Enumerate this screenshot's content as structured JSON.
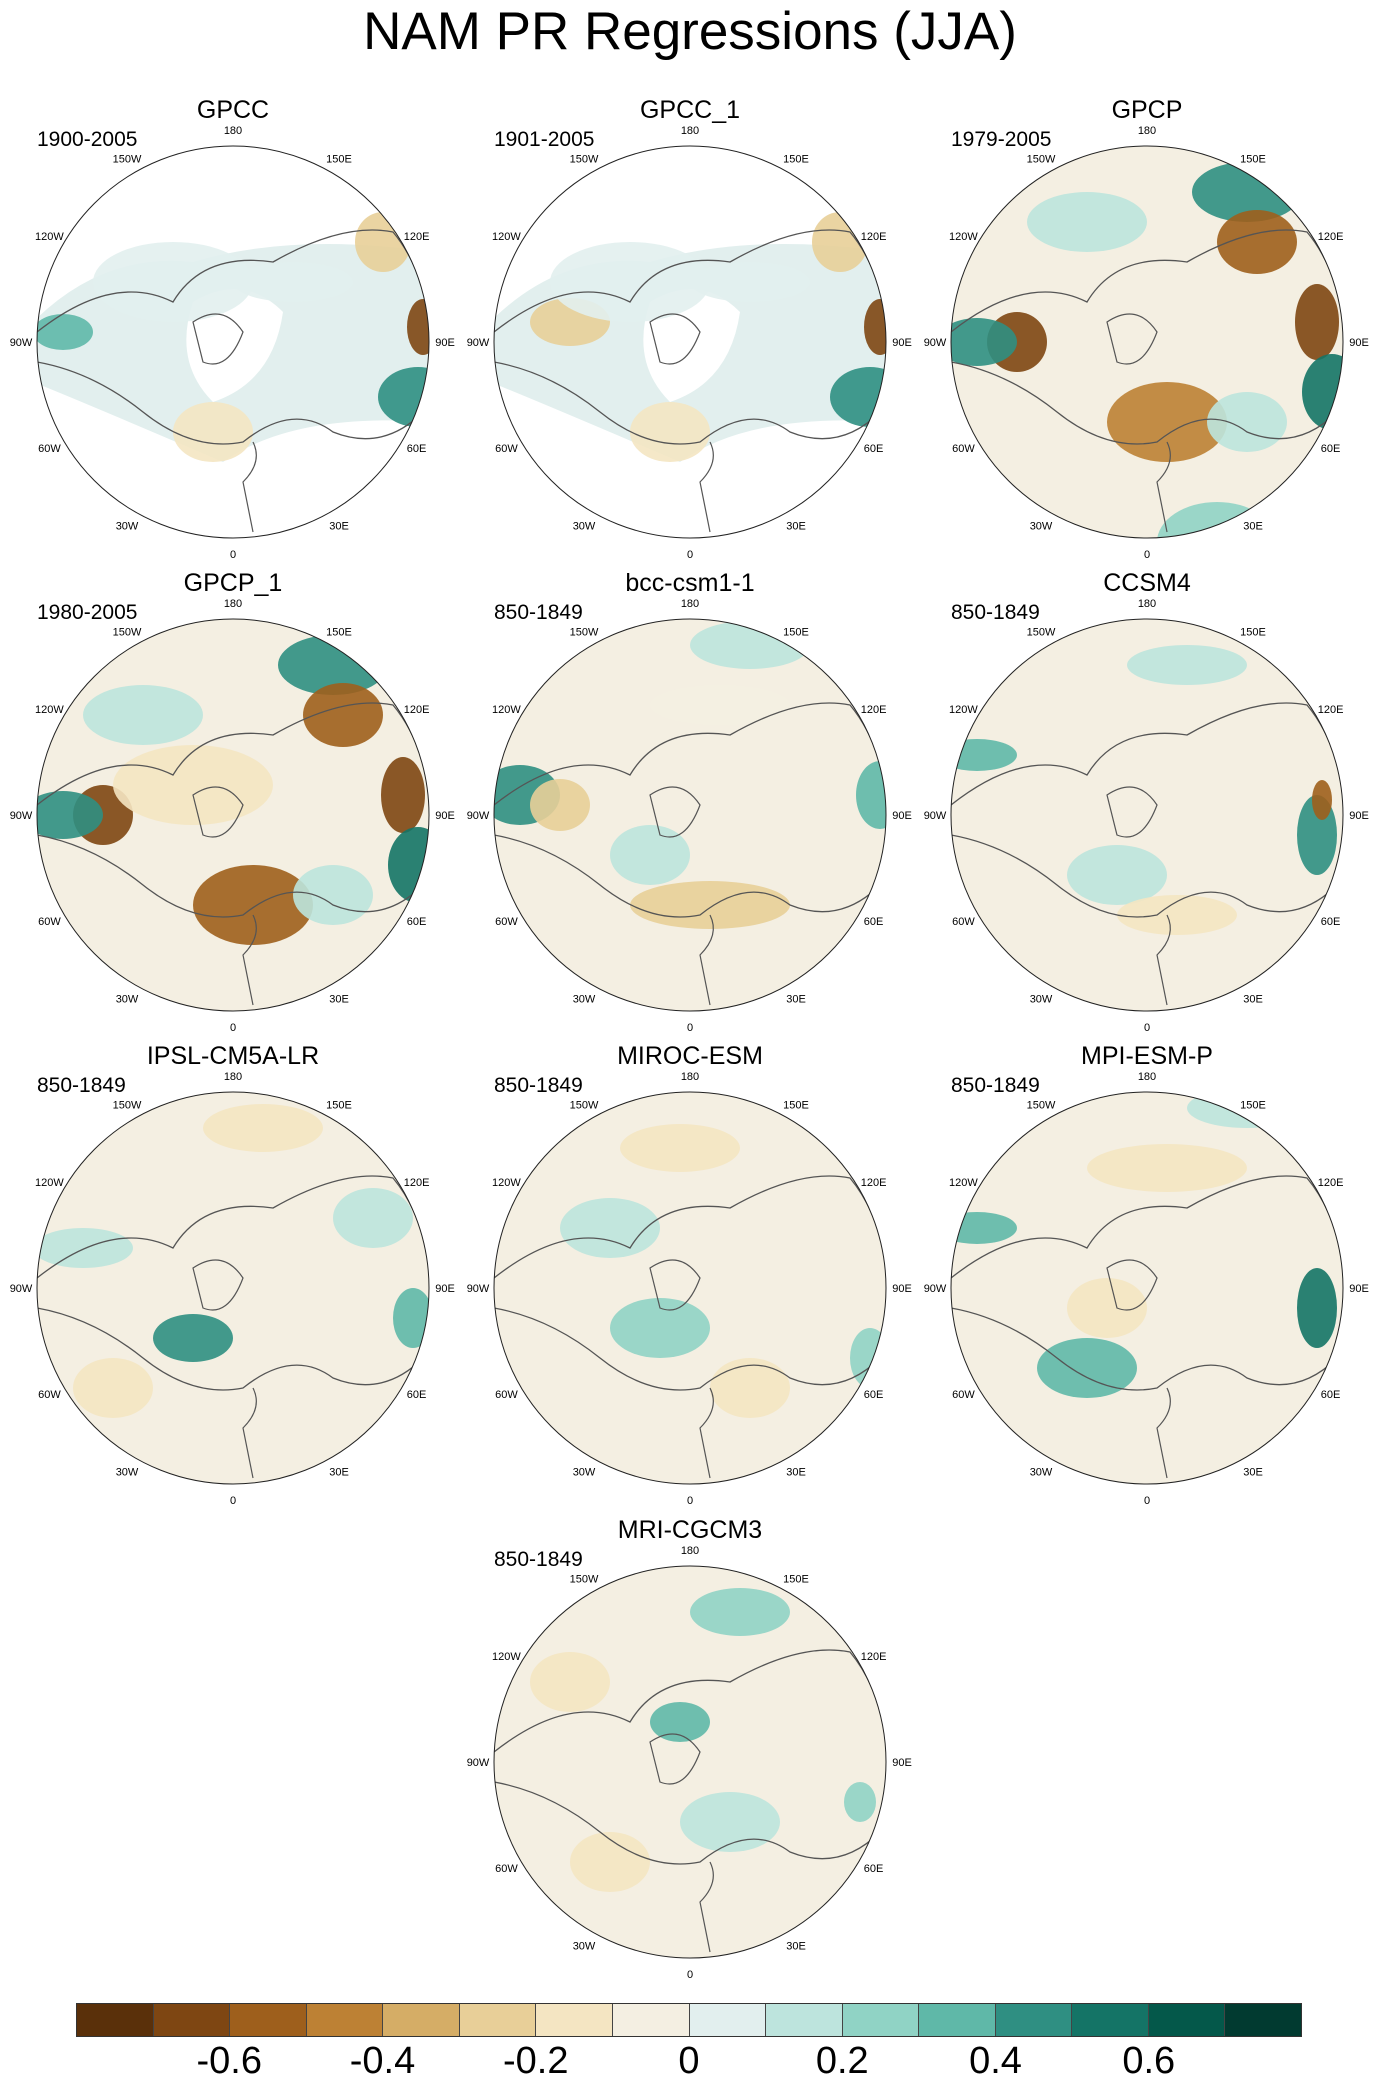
{
  "title": "NAM PR Regressions (JJA)",
  "longitude_labels": [
    "180",
    "150E",
    "120E",
    "90E",
    "60E",
    "30E",
    "0",
    "30W",
    "60W",
    "90W",
    "120W",
    "150W"
  ],
  "panels": [
    {
      "name": "GPCC",
      "period": "1900-2005",
      "type": "obs-land"
    },
    {
      "name": "GPCC_1",
      "period": "1901-2005",
      "type": "obs-land"
    },
    {
      "name": "GPCP",
      "period": "1979-2005",
      "type": "obs-global"
    },
    {
      "name": "GPCP_1",
      "period": "1980-2005",
      "type": "obs-global"
    },
    {
      "name": "bcc-csm1-1",
      "period": "850-1849",
      "type": "model"
    },
    {
      "name": "CCSM4",
      "period": "850-1849",
      "type": "model"
    },
    {
      "name": "IPSL-CM5A-LR",
      "period": "850-1849",
      "type": "model"
    },
    {
      "name": "MIROC-ESM",
      "period": "850-1849",
      "type": "model"
    },
    {
      "name": "MPI-ESM-P",
      "period": "850-1849",
      "type": "model"
    },
    {
      "name": "MRI-CGCM3",
      "period": "850-1849",
      "type": "model"
    }
  ],
  "colorbar": {
    "colors": [
      "#5a300a",
      "#7e4612",
      "#9e5f1c",
      "#bd8134",
      "#d5ad66",
      "#e8cf98",
      "#f4e5c2",
      "#f4efe2",
      "#e2efee",
      "#bde4dd",
      "#90d3c5",
      "#5fb8a8",
      "#2f8f82",
      "#147466",
      "#04584a",
      "#013a30"
    ],
    "tick_values": [
      -0.6,
      -0.4,
      -0.2,
      0,
      0.2,
      0.4,
      0.6
    ],
    "tick_labels": [
      "-0.6",
      "-0.4",
      "-0.2",
      "0",
      "0.2",
      "0.4",
      "0.6"
    ]
  }
}
